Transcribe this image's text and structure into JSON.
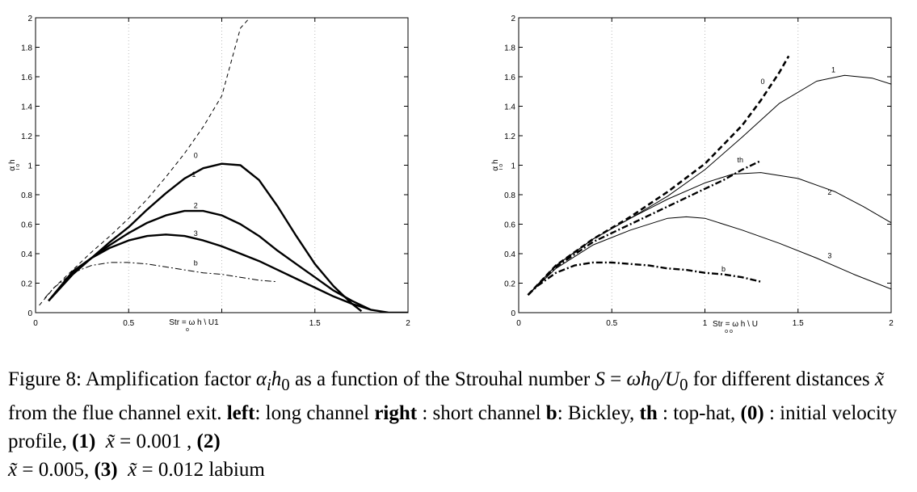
{
  "chart_data": [
    {
      "type": "line",
      "title": "",
      "xlabel": "Str = ω h  \\ U1",
      "xlabel_subscript": "o",
      "ylabel": "α h",
      "ylabel_subscripts": "i   o",
      "xlim": [
        0,
        2
      ],
      "ylim": [
        0,
        2
      ],
      "xticks": [
        "0",
        "0.5",
        "",
        "1.5",
        "2"
      ],
      "xtick_values": [
        0,
        0.5,
        1,
        1.5,
        2
      ],
      "yticks": [
        "0",
        "0.2",
        "0.4",
        "0.6",
        "0.8",
        "1",
        "1.2",
        "1.4",
        "1.6",
        "1.8",
        "2"
      ],
      "ytick_values": [
        0,
        0.2,
        0.4,
        0.6,
        0.8,
        1,
        1.2,
        1.4,
        1.6,
        1.8,
        2
      ],
      "grid": "dotted vertical",
      "series": [
        {
          "name": "0",
          "style": "dashed",
          "x": [
            0.02,
            0.1,
            0.2,
            0.3,
            0.4,
            0.5,
            0.6,
            0.7,
            0.8,
            0.9,
            1.0,
            1.1,
            1.15,
            1.18
          ],
          "y": [
            0.05,
            0.17,
            0.29,
            0.41,
            0.52,
            0.64,
            0.77,
            0.92,
            1.08,
            1.26,
            1.47,
            1.93,
            2.0,
            2.0
          ]
        },
        {
          "name": "1",
          "style": "thick",
          "x": [
            0.07,
            0.2,
            0.3,
            0.4,
            0.5,
            0.6,
            0.7,
            0.8,
            0.9,
            1.0,
            1.1,
            1.2,
            1.3,
            1.4,
            1.5,
            1.6,
            1.7,
            1.75
          ],
          "y": [
            0.08,
            0.26,
            0.37,
            0.48,
            0.58,
            0.7,
            0.81,
            0.91,
            0.98,
            1.01,
            1.0,
            0.9,
            0.72,
            0.52,
            0.33,
            0.18,
            0.06,
            0.01
          ]
        },
        {
          "name": "2",
          "style": "thick",
          "x": [
            0.07,
            0.2,
            0.3,
            0.4,
            0.5,
            0.6,
            0.7,
            0.8,
            0.9,
            1.0,
            1.1,
            1.2,
            1.3,
            1.4,
            1.5,
            1.6,
            1.7,
            1.8
          ],
          "y": [
            0.08,
            0.27,
            0.37,
            0.46,
            0.54,
            0.61,
            0.66,
            0.69,
            0.69,
            0.66,
            0.6,
            0.52,
            0.42,
            0.33,
            0.24,
            0.15,
            0.08,
            0.02
          ]
        },
        {
          "name": "3",
          "style": "thick",
          "x": [
            0.07,
            0.2,
            0.3,
            0.4,
            0.5,
            0.6,
            0.7,
            0.8,
            0.9,
            1.0,
            1.1,
            1.2,
            1.3,
            1.4,
            1.5,
            1.6,
            1.7,
            1.8,
            1.9,
            2.0
          ],
          "y": [
            0.08,
            0.28,
            0.37,
            0.44,
            0.49,
            0.52,
            0.53,
            0.52,
            0.49,
            0.45,
            0.4,
            0.35,
            0.29,
            0.23,
            0.17,
            0.11,
            0.06,
            0.02,
            0.0,
            0.0
          ]
        },
        {
          "name": "b",
          "style": "dashdot",
          "x": [
            0.05,
            0.1,
            0.2,
            0.3,
            0.4,
            0.5,
            0.6,
            0.7,
            0.8,
            0.9,
            1.0,
            1.1,
            1.2,
            1.3
          ],
          "y": [
            0.1,
            0.17,
            0.27,
            0.32,
            0.34,
            0.34,
            0.33,
            0.31,
            0.29,
            0.27,
            0.26,
            0.24,
            0.22,
            0.21
          ]
        }
      ]
    },
    {
      "type": "line",
      "title": "",
      "xlabel": "Str = ω h  \\ U",
      "xlabel_subscript": "o       o",
      "ylabel": "α h",
      "ylabel_subscripts": "i   o",
      "xlim": [
        0,
        2
      ],
      "ylim": [
        0,
        2
      ],
      "xticks": [
        "0",
        "0.5",
        "1",
        "1.5",
        "2"
      ],
      "xtick_values": [
        0,
        0.5,
        1,
        1.5,
        2
      ],
      "yticks": [
        "0",
        "0.2",
        "0.4",
        "0.6",
        "0.8",
        "1",
        "1.2",
        "1.4",
        "1.6",
        "1.8",
        "2"
      ],
      "ytick_values": [
        0,
        0.2,
        0.4,
        0.6,
        0.8,
        1,
        1.2,
        1.4,
        1.6,
        1.8,
        2
      ],
      "grid": "dotted vertical",
      "series": [
        {
          "name": "0",
          "style": "dashed-thick",
          "x": [
            0.05,
            0.2,
            0.4,
            0.6,
            0.8,
            1.0,
            1.2,
            1.3,
            1.4,
            1.45
          ],
          "y": [
            0.12,
            0.32,
            0.5,
            0.65,
            0.82,
            1.01,
            1.27,
            1.44,
            1.63,
            1.74
          ]
        },
        {
          "name": "1",
          "style": "thin",
          "x": [
            0.05,
            0.2,
            0.4,
            0.6,
            0.8,
            1.0,
            1.2,
            1.4,
            1.6,
            1.75,
            1.9,
            2.0
          ],
          "y": [
            0.12,
            0.32,
            0.5,
            0.64,
            0.79,
            0.97,
            1.19,
            1.42,
            1.57,
            1.61,
            1.59,
            1.55
          ]
        },
        {
          "name": "th",
          "style": "dashdot-thick",
          "x": [
            0.05,
            0.2,
            0.4,
            0.6,
            0.8,
            1.0,
            1.1,
            1.2,
            1.3
          ],
          "y": [
            0.12,
            0.31,
            0.48,
            0.6,
            0.72,
            0.84,
            0.9,
            0.97,
            1.03
          ]
        },
        {
          "name": "2",
          "style": "thin",
          "x": [
            0.05,
            0.2,
            0.4,
            0.6,
            0.8,
            1.0,
            1.15,
            1.3,
            1.5,
            1.7,
            1.85,
            2.0
          ],
          "y": [
            0.12,
            0.32,
            0.5,
            0.64,
            0.77,
            0.88,
            0.94,
            0.95,
            0.91,
            0.82,
            0.72,
            0.61
          ]
        },
        {
          "name": "3",
          "style": "thin",
          "x": [
            0.05,
            0.2,
            0.4,
            0.6,
            0.8,
            0.9,
            1.0,
            1.2,
            1.4,
            1.6,
            1.8,
            2.0
          ],
          "y": [
            0.12,
            0.3,
            0.46,
            0.56,
            0.64,
            0.65,
            0.64,
            0.56,
            0.47,
            0.37,
            0.26,
            0.16
          ]
        },
        {
          "name": "b",
          "style": "dashdot-thick",
          "x": [
            0.05,
            0.1,
            0.2,
            0.3,
            0.4,
            0.5,
            0.6,
            0.7,
            0.8,
            0.9,
            1.0,
            1.1,
            1.2,
            1.3
          ],
          "y": [
            0.12,
            0.18,
            0.27,
            0.32,
            0.34,
            0.34,
            0.33,
            0.32,
            0.3,
            0.29,
            0.27,
            0.26,
            0.24,
            0.21
          ]
        }
      ]
    }
  ],
  "caption": {
    "fig_label": "Figure 8:",
    "part1": " Amplification factor ",
    "alpha": "α",
    "alpha_sub": "i",
    "h": "h",
    "h_sub": "0",
    "part2": " as a function of the Strouhal number ",
    "S_eq": "S",
    "eq_sign": " = ",
    "omega": "ω",
    "h2": "h",
    "h2_sub": "0",
    "slash_U": "/U",
    "U_sub": "0",
    "part3": " for different distances ",
    "xtilde": "x̃",
    "part4": " from the flue channel exit. ",
    "left_bold": "left",
    "part5": ": long channel ",
    "right_bold": "right",
    "part6": " : short channel ",
    "b_bold": "b",
    "part7": ": Bickley, ",
    "th_bold": "th",
    "part8": " : top-hat, ",
    "zero_bold": "(0)",
    "part9": " : initial velocity profile, ",
    "one_bold": "(1)",
    "x1": "x̃",
    "eq1": " = 0.001 ",
    "comma1": ", ",
    "two_bold": "(2)",
    "x2": "x̃",
    "eq2": " = 0.005,",
    "three_bold": "(3)",
    "x3": "x̃",
    "eq3": " = 0.012 labium"
  }
}
